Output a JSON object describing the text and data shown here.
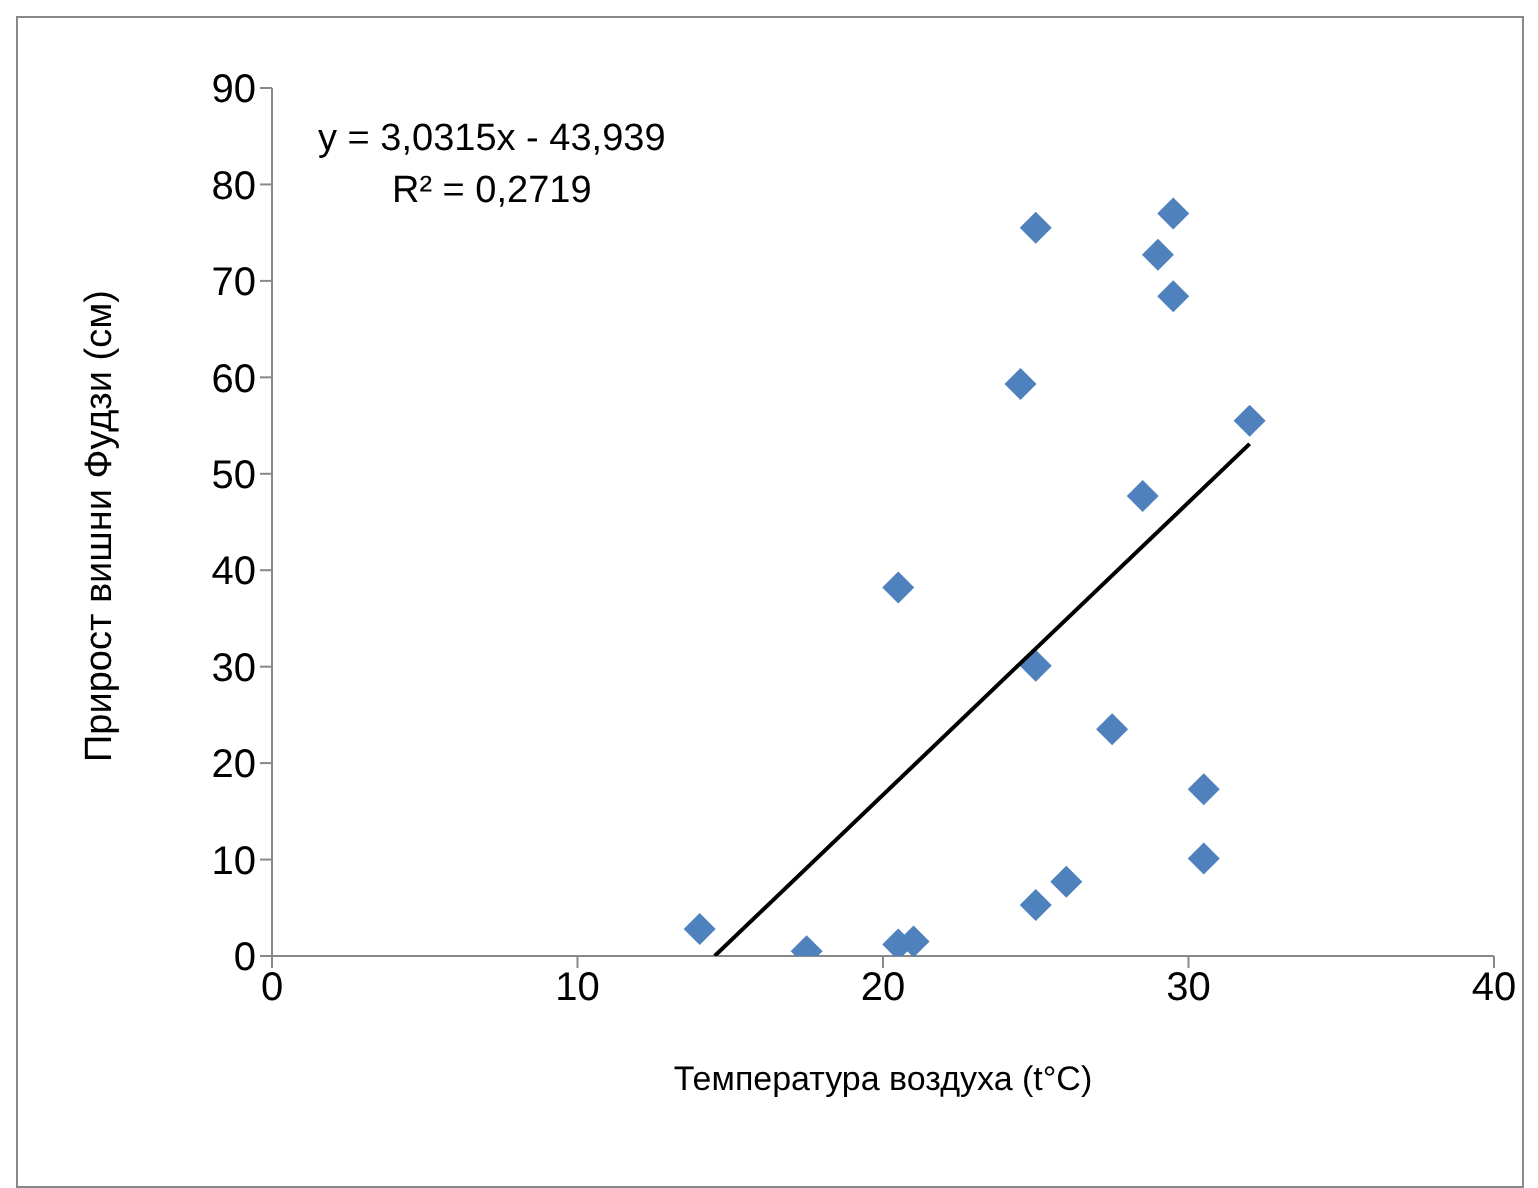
{
  "chart_data": {
    "type": "scatter",
    "xlabel": "Температура воздуха (t°C)",
    "ylabel": "Прирост вишни Фудзи (см)",
    "annotations": [
      "y = 3,0315x - 43,939",
      "R² = 0,2719"
    ],
    "series": [
      {
        "color": "#4f81bd",
        "x": [
          14,
          17.5,
          20.5,
          21,
          20.5,
          24.5,
          25,
          25,
          25,
          26,
          27.5,
          28.5,
          29,
          29.5,
          29.5,
          30.5,
          30.5,
          32
        ],
        "values": [
          2.8,
          0.5,
          1.2,
          1.5,
          38.2,
          59.3,
          75.5,
          30.1,
          5.3,
          7.7,
          23.5,
          47.7,
          72.7,
          77,
          68.4,
          17.3,
          10.1,
          55.5
        ]
      },
      {
        "type": "line",
        "marker": "none",
        "color": "#000000",
        "x": [
          14.49,
          32
        ],
        "values": [
          0,
          53.1
        ]
      }
    ],
    "marker": "diamond",
    "xlim": [
      0,
      40
    ],
    "xticks": [
      0,
      10,
      20,
      30,
      40
    ],
    "ylim": [
      0,
      90
    ],
    "yticks": [
      0,
      10,
      20,
      30,
      40,
      50,
      60,
      70,
      80,
      90
    ],
    "grid": false,
    "legend": false
  }
}
